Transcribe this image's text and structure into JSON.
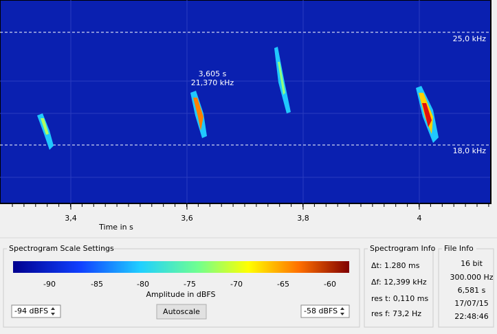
{
  "spectrogram": {
    "freq_markers": [
      "25,0 kHz",
      "18,0 kHz"
    ],
    "cursor": {
      "time": "3,605 s",
      "freq": "21,370 kHz"
    },
    "time_ticks": [
      "3,4",
      "3,6",
      "3,8",
      "4"
    ],
    "time_axis_label": "Time in s"
  },
  "scale_settings": {
    "title": "Spectrogram Scale Settings",
    "colorbar_ticks": [
      "-90",
      "-85",
      "-80",
      "-75",
      "-70",
      "-65",
      "-60"
    ],
    "colorbar_label": "Amplitude in dBFS",
    "min": "-94 dBFS",
    "max": "-58 dBFS",
    "button": "Autoscale"
  },
  "spectrogram_info": {
    "title": "Spectrogram Info",
    "lines": [
      "Δt: 1.280 ms",
      "Δf: 12,399 kHz",
      "res t: 0,110 ms",
      "res f: 73,2 Hz"
    ]
  },
  "file_info": {
    "title": "File Info",
    "lines": [
      "16 bit",
      "300.000 Hz",
      "6,581 s",
      "17/07/15",
      "22:48:46"
    ]
  }
}
